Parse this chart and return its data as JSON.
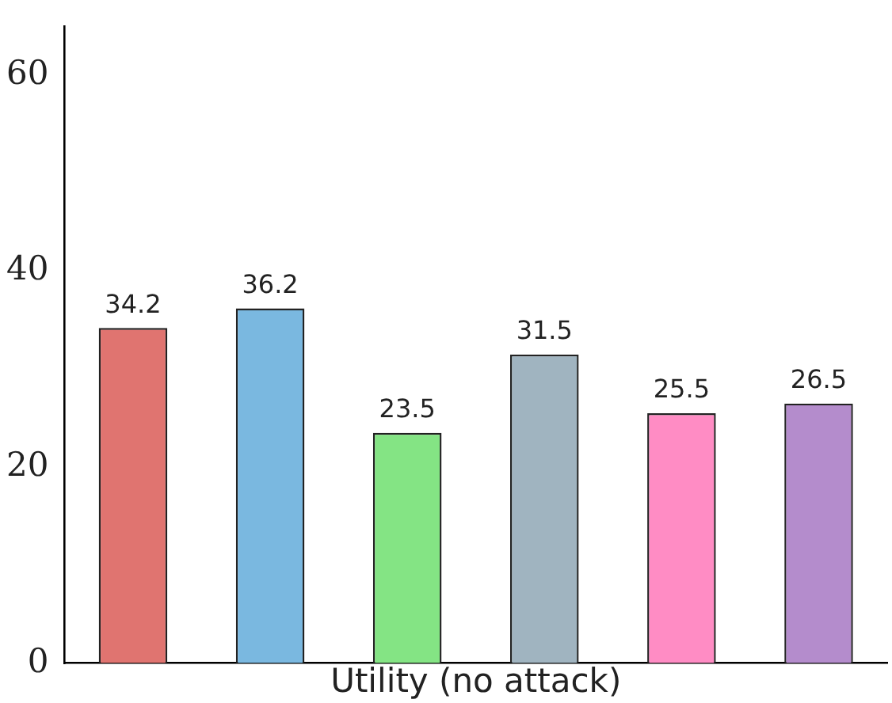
{
  "chart_data": {
    "type": "bar",
    "xlabel": "Utility (no attack)",
    "categories": [
      null,
      null,
      null,
      null,
      null,
      null
    ],
    "values": [
      34.2,
      36.2,
      23.5,
      31.5,
      25.5,
      26.5
    ],
    "colors": [
      "#e07470",
      "#7ab8e0",
      "#84e484",
      "#a0b4c0",
      "#ff8cc4",
      "#b48ccc"
    ],
    "ylim": [
      0,
      65
    ],
    "yticks": [
      0,
      20,
      40,
      60
    ],
    "grid": false,
    "legend": false,
    "data_labels": true,
    "tick_labels": "y"
  }
}
